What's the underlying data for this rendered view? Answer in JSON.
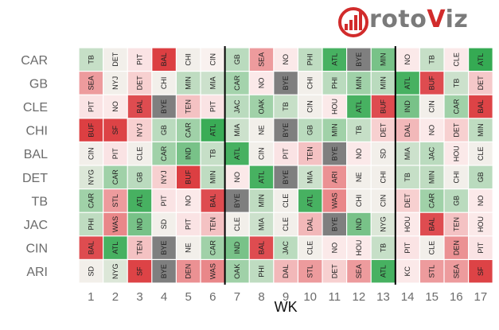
{
  "chart_data": {
    "type": "heatmap",
    "xlabel": "WK",
    "weeks": [
      1,
      2,
      3,
      4,
      5,
      6,
      7,
      8,
      9,
      10,
      11,
      12,
      13,
      14,
      15,
      16,
      17
    ],
    "teams": [
      "CAR",
      "GB",
      "CLE",
      "CHI",
      "BAL",
      "DET",
      "TB",
      "JAC",
      "CIN",
      "ARI"
    ],
    "dividers_after_week": [
      6,
      13
    ],
    "color_scale": {
      "easy": "#1fa241",
      "neutral": "#fdf3f3",
      "hard": "#d92f33",
      "bye": "#7f7f7f"
    },
    "rows": [
      {
        "team": "CAR",
        "opponents": [
          "TB",
          "DET",
          "PIT",
          "BAL",
          "CHI",
          "CIN",
          "GB",
          "SEA",
          "NO",
          "PHI",
          "ATL",
          "BYE",
          "MIN",
          "NO",
          "TB",
          "CLE",
          "ATL"
        ],
        "values": [
          0.25,
          0.05,
          -0.08,
          -0.92,
          0.05,
          0.02,
          0.3,
          -0.45,
          -0.05,
          0.28,
          0.82,
          null,
          0.6,
          -0.05,
          0.25,
          -0.05,
          0.9
        ]
      },
      {
        "team": "GB",
        "opponents": [
          "SEA",
          "NYJ",
          "DET",
          "CHI",
          "MIN",
          "MIA",
          "CAR",
          "NO",
          "BYE",
          "CHI",
          "PHI",
          "MIN",
          "MIN",
          "ATL",
          "BUF",
          "TB",
          "DET"
        ],
        "values": [
          -0.45,
          0.05,
          -0.18,
          0.05,
          0.28,
          0.22,
          0.4,
          -0.05,
          null,
          0.05,
          0.3,
          0.42,
          0.3,
          0.82,
          -0.85,
          0.22,
          -0.22
        ]
      },
      {
        "team": "CLE",
        "opponents": [
          "PIT",
          "NO",
          "BAL",
          "BYE",
          "TEN",
          "PIT",
          "JAC",
          "OAK",
          "TB",
          "CIN",
          "HOU",
          "ATL",
          "BUF",
          "IND",
          "CIN",
          "CAR",
          "BAL"
        ],
        "values": [
          -0.08,
          -0.05,
          -0.85,
          null,
          -0.25,
          -0.08,
          0.3,
          0.42,
          0.25,
          0.05,
          -0.05,
          0.82,
          -0.85,
          0.6,
          0.05,
          0.42,
          -0.9
        ]
      },
      {
        "team": "CHI",
        "opponents": [
          "BUF",
          "SF",
          "NYJ",
          "GB",
          "CAR",
          "ATL",
          "MIA",
          "NE",
          "BYE",
          "GB",
          "MIN",
          "TB",
          "DET",
          "DAL",
          "NO",
          "DET",
          "MIN"
        ],
        "values": [
          -0.92,
          -0.9,
          -0.18,
          0.3,
          0.42,
          0.88,
          0.22,
          0.05,
          null,
          0.3,
          0.42,
          0.25,
          -0.18,
          -0.3,
          -0.05,
          -0.18,
          0.28
        ]
      },
      {
        "team": "BAL",
        "opponents": [
          "CIN",
          "PIT",
          "CLE",
          "CAR",
          "IND",
          "TB",
          "ATL",
          "CIN",
          "PIT",
          "TEN",
          "BYE",
          "NO",
          "SD",
          "MIA",
          "JAC",
          "HOU",
          "CLE"
        ],
        "values": [
          0.05,
          -0.08,
          0.05,
          0.42,
          0.6,
          0.25,
          0.82,
          0.05,
          -0.08,
          -0.25,
          null,
          -0.05,
          0.05,
          0.22,
          0.3,
          -0.05,
          0.05
        ]
      },
      {
        "team": "DET",
        "opponents": [
          "NYG",
          "CAR",
          "GB",
          "NYJ",
          "BUF",
          "MIN",
          "NO",
          "ATL",
          "BYE",
          "MIA",
          "ARI",
          "NE",
          "CHI",
          "TB",
          "MIN",
          "CHI",
          "GB"
        ],
        "values": [
          0.15,
          0.42,
          0.3,
          -0.18,
          -0.92,
          0.28,
          -0.05,
          0.82,
          null,
          0.22,
          -0.5,
          0.05,
          0.05,
          0.25,
          0.28,
          0.05,
          0.3
        ]
      },
      {
        "team": "TB",
        "opponents": [
          "CAR",
          "STL",
          "ATL",
          "PIT",
          "NO",
          "BAL",
          "BYE",
          "MIN",
          "CLE",
          "ATL",
          "WAS",
          "CHI",
          "CIN",
          "DET",
          "CAR",
          "GB",
          "NO"
        ],
        "values": [
          0.42,
          -0.45,
          0.82,
          -0.08,
          -0.05,
          -0.85,
          null,
          0.28,
          0.05,
          0.82,
          -0.55,
          0.05,
          0.05,
          -0.18,
          0.42,
          0.3,
          -0.05
        ]
      },
      {
        "team": "JAC",
        "opponents": [
          "PHI",
          "WAS",
          "IND",
          "SD",
          "PIT",
          "TEN",
          "CLE",
          "MIA",
          "CLE",
          "DAL",
          "BYE",
          "IND",
          "NYG",
          "HOU",
          "BAL",
          "TEN",
          "HOU"
        ],
        "values": [
          0.28,
          -0.55,
          0.6,
          0.05,
          -0.08,
          -0.25,
          0.05,
          0.22,
          0.05,
          -0.3,
          null,
          0.6,
          0.15,
          -0.05,
          -0.85,
          -0.25,
          -0.05
        ]
      },
      {
        "team": "CIN",
        "opponents": [
          "BAL",
          "ATL",
          "TEN",
          "BYE",
          "NE",
          "CAR",
          "IND",
          "BAL",
          "JAC",
          "CLE",
          "NO",
          "HOU",
          "TB",
          "PIT",
          "CLE",
          "DEN",
          "PIT"
        ],
        "values": [
          -0.85,
          0.82,
          -0.25,
          null,
          0.05,
          0.42,
          0.6,
          -0.85,
          0.3,
          0.05,
          -0.05,
          -0.05,
          0.25,
          -0.08,
          0.05,
          -0.5,
          -0.08
        ]
      },
      {
        "team": "ARI",
        "opponents": [
          "SD",
          "NYG",
          "SF",
          "BYE",
          "DEN",
          "WAS",
          "OAK",
          "PHI",
          "DAL",
          "STL",
          "DET",
          "SEA",
          "ATL",
          "KC",
          "STL",
          "SEA",
          "SF"
        ],
        "values": [
          0.05,
          0.15,
          -0.9,
          null,
          -0.5,
          -0.55,
          0.42,
          0.28,
          -0.3,
          -0.45,
          -0.18,
          -0.45,
          0.82,
          -0.05,
          -0.45,
          -0.45,
          -0.9
        ]
      }
    ]
  },
  "branding": {
    "logo_prefix": "roto",
    "logo_accent": "V",
    "logo_suffix": "iz",
    "logo_icon": "chart-circle-icon"
  }
}
